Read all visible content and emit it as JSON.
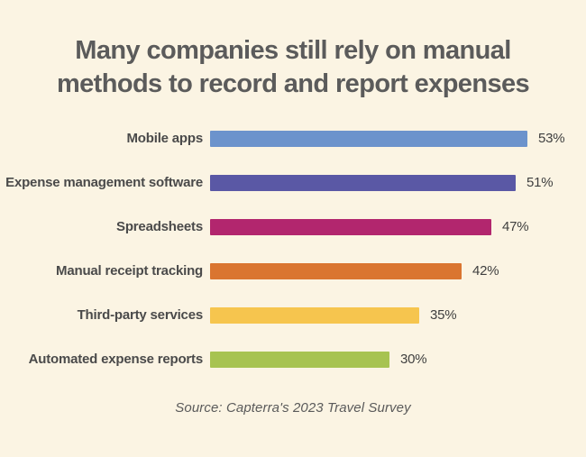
{
  "title_lines": {
    "line1": "Many companies still rely on manual",
    "line2": "methods to record and report expenses"
  },
  "source_text": "Source: Capterra's 2023 Travel Survey",
  "colors": {
    "background": "#FBF4E3",
    "title": "#5B5B5B",
    "category_label": "#4A4A4A",
    "value_label": "#3F3F3F",
    "source": "#5A5A5A"
  },
  "chart_data": {
    "type": "bar",
    "orientation": "horizontal",
    "title": "Many companies still rely on manual methods to record and report expenses",
    "categories": [
      "Mobile apps",
      "Expense management software",
      "Spreadsheets",
      "Manual receipt tracking",
      "Third-party services",
      "Automated expense reports"
    ],
    "values": [
      53,
      51,
      47,
      42,
      35,
      30
    ],
    "value_labels": [
      "53%",
      "51%",
      "47%",
      "42%",
      "35%",
      "30%"
    ],
    "bar_colors": [
      "#6C93CC",
      "#5A58A5",
      "#B2266E",
      "#DA7530",
      "#F6C54E",
      "#A7C351"
    ],
    "max_value_for_scale": 53,
    "xlabel": "",
    "ylabel": "",
    "xlim": [
      0,
      53
    ],
    "grid": false,
    "legend": false,
    "annotation": "Source: Capterra's 2023 Travel Survey"
  }
}
